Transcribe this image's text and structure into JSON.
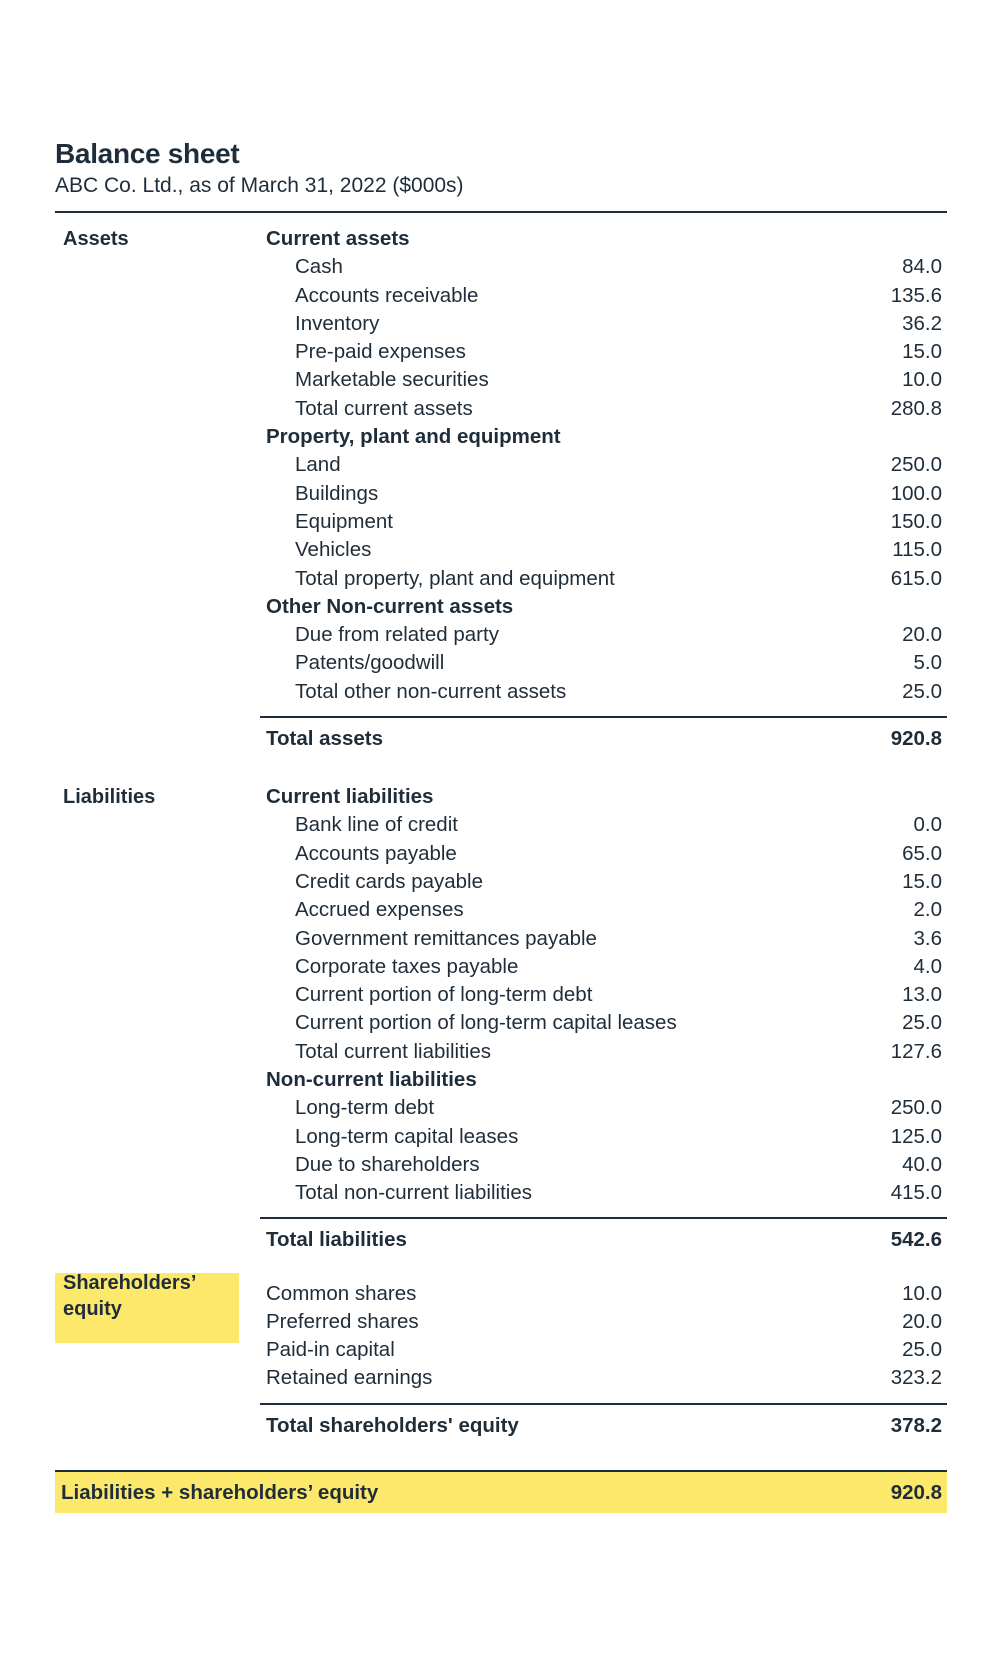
{
  "title": "Balance sheet",
  "subtitle": "ABC Co. Ltd., as of March 31, 2022 ($000s)",
  "colors": {
    "text": "#1f2d3a",
    "highlight": "#fce96b"
  },
  "assets": {
    "label": "Assets",
    "rows": [
      {
        "type": "head",
        "name": "Current assets",
        "value": ""
      },
      {
        "type": "item",
        "name": "Cash",
        "value": "84.0"
      },
      {
        "type": "item",
        "name": "Accounts receivable",
        "value": "135.6"
      },
      {
        "type": "item",
        "name": "Inventory",
        "value": "36.2"
      },
      {
        "type": "item",
        "name": "Pre-paid expenses",
        "value": "15.0"
      },
      {
        "type": "item",
        "name": "Marketable securities",
        "value": "10.0"
      },
      {
        "type": "item",
        "name": "Total current assets",
        "value": "280.8"
      },
      {
        "type": "head",
        "name": "Property, plant and equipment",
        "value": ""
      },
      {
        "type": "item",
        "name": "Land",
        "value": "250.0"
      },
      {
        "type": "item",
        "name": "Buildings",
        "value": "100.0"
      },
      {
        "type": "item",
        "name": "Equipment",
        "value": "150.0"
      },
      {
        "type": "item",
        "name": "Vehicles",
        "value": "115.0"
      },
      {
        "type": "item",
        "name": "Total property, plant and equipment",
        "value": "615.0"
      },
      {
        "type": "head",
        "name": "Other Non-current assets",
        "value": ""
      },
      {
        "type": "item",
        "name": "Due from related party",
        "value": "20.0"
      },
      {
        "type": "item",
        "name": "Patents/goodwill",
        "value": "5.0"
      },
      {
        "type": "item",
        "name": "Total other non-current assets",
        "value": "25.0"
      }
    ],
    "total": {
      "name": "Total assets",
      "value": "920.8"
    }
  },
  "liabilities": {
    "label": "Liabilities",
    "rows": [
      {
        "type": "head",
        "name": "Current liabilities",
        "value": ""
      },
      {
        "type": "item",
        "name": "Bank line of credit",
        "value": "0.0"
      },
      {
        "type": "item",
        "name": "Accounts payable",
        "value": "65.0"
      },
      {
        "type": "item",
        "name": "Credit cards payable",
        "value": "15.0"
      },
      {
        "type": "item",
        "name": "Accrued expenses",
        "value": "2.0"
      },
      {
        "type": "item",
        "name": "Government remittances payable",
        "value": "3.6"
      },
      {
        "type": "item",
        "name": "Corporate taxes payable",
        "value": "4.0"
      },
      {
        "type": "item",
        "name": "Current portion of long-term debt",
        "value": "13.0"
      },
      {
        "type": "item",
        "name": "Current portion of long-term capital leases",
        "value": "25.0"
      },
      {
        "type": "item",
        "name": "Total current liabilities",
        "value": "127.6"
      },
      {
        "type": "head",
        "name": "Non-current liabilities",
        "value": ""
      },
      {
        "type": "item",
        "name": "Long-term debt",
        "value": "250.0"
      },
      {
        "type": "item",
        "name": "Long-term capital leases",
        "value": "125.0"
      },
      {
        "type": "item",
        "name": "Due to shareholders",
        "value": "40.0"
      },
      {
        "type": "item",
        "name": "Total non-current liabilities",
        "value": "415.0"
      }
    ],
    "total": {
      "name": "Total liabilities",
      "value": "542.6"
    }
  },
  "equity": {
    "label_line1": "Shareholders’",
    "label_line2": "equity",
    "rows": [
      {
        "type": "plain",
        "name": "Common shares",
        "value": "10.0"
      },
      {
        "type": "plain",
        "name": "Preferred shares",
        "value": "20.0"
      },
      {
        "type": "plain",
        "name": "Paid-in capital",
        "value": "25.0"
      },
      {
        "type": "plain",
        "name": "Retained earnings",
        "value": "323.2"
      }
    ],
    "total": {
      "name": "Total shareholders' equity",
      "value": "378.2"
    }
  },
  "grand_total": {
    "name": "Liabilities + shareholders’ equity",
    "value": "920.8"
  }
}
